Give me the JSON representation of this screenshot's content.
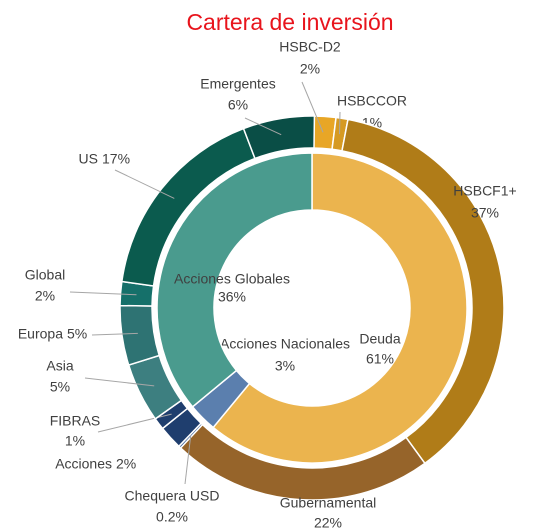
{
  "chart_data": {
    "type": "sunburst",
    "title": "Cartera de inversión",
    "inner": {
      "categories": [
        "Deuda",
        "Acciones Nacionales",
        "Acciones Globales"
      ],
      "values": [
        61,
        3,
        36
      ],
      "value_labels": [
        "61%",
        "3%",
        "36%"
      ],
      "colors": [
        "#ebb44e",
        "#5b7fae",
        "#4a9b8e"
      ]
    },
    "outer": {
      "categories": [
        "HSBC-D2",
        "HSBCCOR",
        "HSBCF1+",
        "Gubernamental",
        "Chequera USD",
        "Acciones",
        "FIBRAS",
        "Asia",
        "Europa",
        "Global",
        "US",
        "Emergentes"
      ],
      "values": [
        2,
        1,
        37,
        22,
        0.2,
        2,
        1,
        5,
        5,
        2,
        17,
        6
      ],
      "value_labels": [
        "2%",
        "1%",
        "37%",
        "22%",
        "0.2%",
        "2%",
        "1%",
        "5%",
        "5%",
        "2%",
        "17%",
        "6%"
      ],
      "colors": [
        "#e8a626",
        "#d69a22",
        "#b07c18",
        "#96642a",
        "#3b5f95",
        "#1f3e6e",
        "#1f3e6e",
        "#3d7f80",
        "#2e7373",
        "#15706a",
        "#0b5b4e",
        "#0a4e46"
      ]
    }
  }
}
